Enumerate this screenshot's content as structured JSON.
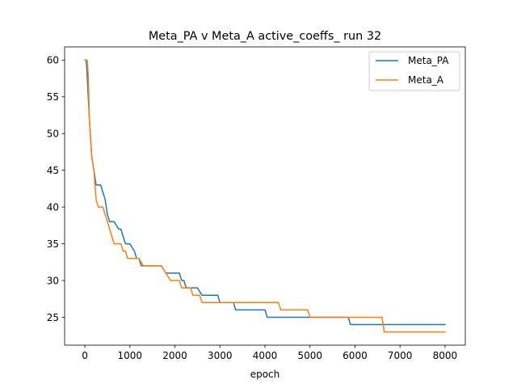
{
  "chart_data": {
    "type": "line",
    "title": "Meta_PA v Meta_A active_coeffs_ run 32",
    "xlabel": "epoch",
    "ylabel": "",
    "xlim": [
      -450,
      8450
    ],
    "ylim": [
      21.2,
      61.8
    ],
    "xticks": [
      0,
      1000,
      2000,
      3000,
      4000,
      5000,
      6000,
      7000,
      8000
    ],
    "yticks": [
      25,
      30,
      35,
      40,
      45,
      50,
      55,
      60
    ],
    "legend_position": "top-right",
    "grid": false,
    "series": [
      {
        "name": "Meta_PA",
        "color": "#1f77b4",
        "x": [
          0,
          30,
          50,
          100,
          150,
          200,
          250,
          300,
          350,
          400,
          450,
          500,
          550,
          650,
          750,
          800,
          850,
          900,
          1000,
          1100,
          1150,
          1200,
          1250,
          1300,
          1500,
          1700,
          1800,
          1900,
          2000,
          2100,
          2150,
          2200,
          2250,
          2350,
          2400,
          2500,
          2600,
          2700,
          2800,
          2950,
          3000,
          3100,
          3200,
          3300,
          3350,
          3600,
          4000,
          4050,
          4100,
          4500,
          4900,
          5000,
          5300,
          5800,
          5850,
          5900,
          6000,
          7000,
          8000
        ],
        "y": [
          60,
          60,
          58,
          52,
          47,
          45,
          43,
          43,
          43,
          42,
          41,
          39,
          38,
          38,
          37,
          37,
          36,
          35,
          35,
          34,
          33,
          33,
          32,
          32,
          32,
          32,
          31,
          31,
          31,
          31,
          30,
          30,
          29,
          29,
          29,
          29,
          28,
          28,
          28,
          28,
          27,
          27,
          27,
          27,
          26,
          26,
          26,
          25,
          25,
          25,
          25,
          25,
          25,
          25,
          25,
          24,
          24,
          24,
          24
        ]
      },
      {
        "name": "Meta_A",
        "color": "#ff7f0e",
        "x": [
          0,
          50,
          75,
          100,
          150,
          200,
          250,
          300,
          400,
          450,
          500,
          550,
          600,
          650,
          700,
          800,
          850,
          900,
          950,
          1100,
          1200,
          1300,
          1700,
          1800,
          1900,
          2100,
          2150,
          2300,
          2350,
          2400,
          2550,
          2600,
          2700,
          2900,
          3200,
          3500,
          4000,
          4300,
          4350,
          4900,
          4950,
          5000,
          5500,
          6000,
          6600,
          6650,
          7000,
          8000
        ],
        "y": [
          60,
          60,
          58,
          52,
          47,
          45,
          41,
          40,
          40,
          39,
          38,
          37,
          36,
          35,
          35,
          35,
          34,
          34,
          33,
          33,
          33,
          32,
          32,
          31,
          30,
          30,
          29,
          29,
          29,
          28,
          28,
          27,
          27,
          27,
          27,
          27,
          27,
          27,
          26,
          26,
          26,
          25,
          25,
          25,
          25,
          23,
          23,
          23
        ]
      }
    ]
  }
}
